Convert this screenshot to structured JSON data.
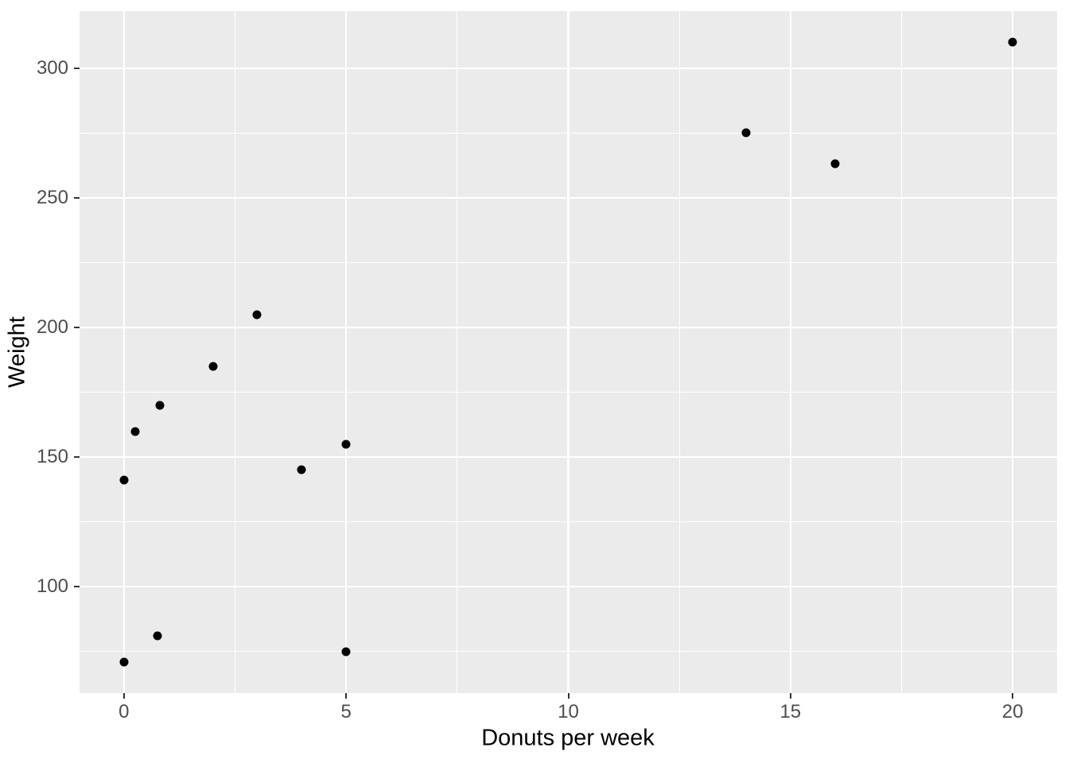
{
  "chart_data": {
    "type": "scatter",
    "title": "",
    "xlabel": "Donuts per week",
    "ylabel": "Weight",
    "xlim": [
      -1,
      21
    ],
    "ylim": [
      59,
      322
    ],
    "x_ticks": [
      0,
      5,
      10,
      15,
      20
    ],
    "y_ticks": [
      100,
      150,
      200,
      250,
      300
    ],
    "x_minor_gridlines": [
      2.5,
      7.5,
      12.5,
      17.5
    ],
    "y_minor_gridlines": [
      75,
      125,
      175,
      225,
      275
    ],
    "grid": "on",
    "legend_position": "none",
    "points": [
      [
        0,
        141
      ],
      [
        0.25,
        160
      ],
      [
        0.8,
        170
      ],
      [
        2,
        185
      ],
      [
        3,
        205
      ],
      [
        4,
        145
      ],
      [
        5,
        155
      ],
      [
        14,
        275
      ],
      [
        16,
        263
      ],
      [
        20,
        310
      ],
      [
        0,
        71
      ],
      [
        0.75,
        81
      ],
      [
        5,
        75
      ]
    ],
    "colors": {
      "panel_background": "#EBEBEB",
      "grid": "#FFFFFF",
      "point": "#000000",
      "tick_mark": "#333333",
      "tick_label": "#4D4D4D",
      "axis_title": "#000000",
      "figure_background": "#FFFFFF"
    }
  }
}
